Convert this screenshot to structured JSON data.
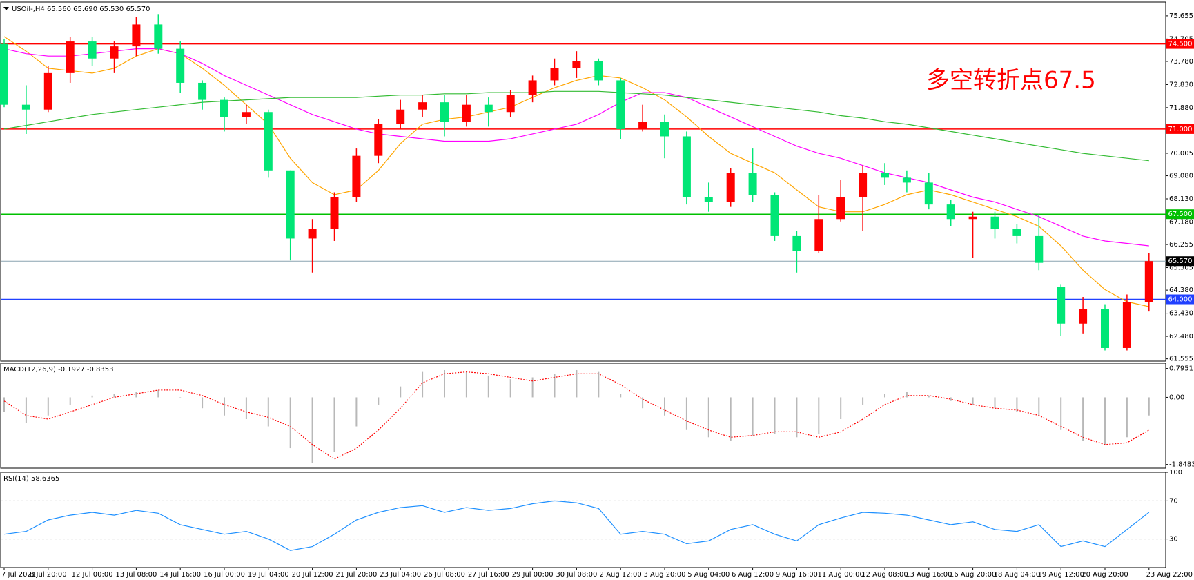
{
  "chart_data": [
    {
      "type": "candlestick",
      "title": "USOil-,H4 65.560 65.690 65.530 65.570",
      "annotation": "多空转折点67.5",
      "categories": [
        "7 Jul 2021",
        null,
        "8 Jul 20:00",
        null,
        "12 Jul 00:00",
        null,
        "13 Jul 08:00",
        null,
        "14 Jul 16:00",
        null,
        "16 Jul 00:00",
        null,
        "19 Jul 04:00",
        null,
        "20 Jul 12:00",
        null,
        "21 Jul 20:00",
        null,
        "23 Jul 04:00",
        null,
        "26 Jul 08:00",
        null,
        "27 Jul 16:00",
        null,
        "29 Jul 00:00",
        null,
        "30 Jul 08:00",
        null,
        "2 Aug 12:00",
        null,
        "3 Aug 20:00",
        null,
        "5 Aug 04:00",
        null,
        "6 Aug 12:00",
        null,
        "9 Aug 16:00",
        null,
        "11 Aug 00:00",
        null,
        "12 Aug 08:00",
        null,
        "13 Aug 16:00",
        null,
        "16 Aug 20:00",
        null,
        "18 Aug 04:00",
        null,
        "19 Aug 12:00",
        null,
        "20 Aug 20:00",
        null,
        "23 Aug 22:00"
      ],
      "open": [
        74.5,
        72.0,
        71.8,
        73.3,
        74.6,
        73.9,
        74.4,
        75.3,
        74.3,
        72.9,
        72.2,
        71.5,
        71.7,
        69.3,
        66.5,
        66.9,
        68.2,
        69.9,
        71.2,
        71.8,
        72.1,
        71.3,
        72.0,
        71.7,
        72.4,
        73.0,
        73.5,
        73.8,
        73.0,
        71.0,
        71.3,
        70.7,
        68.2,
        68.0,
        69.2,
        68.3,
        66.6,
        66.0,
        67.3,
        68.2,
        69.2,
        69.0,
        68.8,
        67.9,
        67.3,
        67.4,
        66.9,
        66.6,
        64.5,
        63.0,
        63.6,
        62.0,
        63.9
      ],
      "high": [
        74.7,
        72.8,
        73.6,
        74.8,
        74.8,
        74.6,
        75.6,
        75.7,
        74.6,
        73.0,
        72.3,
        72.0,
        71.8,
        69.3,
        67.3,
        68.4,
        70.2,
        71.4,
        72.2,
        72.4,
        72.4,
        72.4,
        72.3,
        72.6,
        73.2,
        73.9,
        74.2,
        73.9,
        73.1,
        72.0,
        71.6,
        70.9,
        68.8,
        69.4,
        70.2,
        68.4,
        66.8,
        68.3,
        68.9,
        69.5,
        69.6,
        69.3,
        69.2,
        68.1,
        67.6,
        67.6,
        67.1,
        67.5,
        64.6,
        64.1,
        63.8,
        64.2,
        65.9
      ],
      "low": [
        71.9,
        70.8,
        71.7,
        72.9,
        73.6,
        73.3,
        74.0,
        74.1,
        72.5,
        71.8,
        70.9,
        71.2,
        69.0,
        65.6,
        65.1,
        66.4,
        68.0,
        69.6,
        71.0,
        71.5,
        70.7,
        71.1,
        71.1,
        71.5,
        72.1,
        72.8,
        73.1,
        72.8,
        70.6,
        70.9,
        69.8,
        67.9,
        67.6,
        67.8,
        68.0,
        66.4,
        65.1,
        65.9,
        67.2,
        66.8,
        68.7,
        68.4,
        67.7,
        67.0,
        65.7,
        66.5,
        66.3,
        65.2,
        62.5,
        62.6,
        61.9,
        61.9,
        63.5
      ],
      "close": [
        72.0,
        71.8,
        73.3,
        74.6,
        73.9,
        74.4,
        75.3,
        74.3,
        72.9,
        72.2,
        71.5,
        71.7,
        69.3,
        66.5,
        66.9,
        68.2,
        69.9,
        71.2,
        71.8,
        72.1,
        71.3,
        72.0,
        71.7,
        72.4,
        73.0,
        73.5,
        73.8,
        73.0,
        71.0,
        71.3,
        70.7,
        68.2,
        68.0,
        69.2,
        68.3,
        66.6,
        66.0,
        67.3,
        68.2,
        69.2,
        69.0,
        68.8,
        67.9,
        67.3,
        67.4,
        66.9,
        66.6,
        65.5,
        63.0,
        63.6,
        62.0,
        63.9,
        65.57
      ],
      "up_color": "#ff0000",
      "down_color": "#00e676",
      "lines": [
        {
          "color": "#ffa500",
          "values": [
            74.8,
            74.2,
            73.5,
            73.4,
            73.3,
            73.5,
            74.0,
            74.3,
            74.1,
            73.5,
            72.8,
            72.0,
            71.2,
            69.8,
            68.8,
            68.3,
            68.5,
            69.3,
            70.4,
            71.2,
            71.4,
            71.5,
            71.7,
            71.9,
            72.3,
            72.7,
            73.0,
            73.2,
            73.1,
            72.7,
            72.2,
            71.5,
            70.7,
            70.0,
            69.6,
            69.2,
            68.5,
            67.8,
            67.6,
            67.6,
            67.9,
            68.3,
            68.5,
            68.3,
            68.0,
            67.7,
            67.4,
            67.0,
            66.2,
            65.2,
            64.4,
            63.9,
            63.7
          ]
        },
        {
          "color": "#ff00ff",
          "values": [
            74.3,
            74.1,
            74.0,
            74.0,
            74.1,
            74.2,
            74.3,
            74.3,
            74.1,
            73.7,
            73.2,
            72.8,
            72.4,
            72.0,
            71.6,
            71.3,
            71.0,
            70.8,
            70.7,
            70.6,
            70.5,
            70.5,
            70.5,
            70.6,
            70.8,
            71.0,
            71.2,
            71.6,
            72.1,
            72.5,
            72.5,
            72.3,
            71.9,
            71.5,
            71.1,
            70.7,
            70.3,
            70.0,
            69.8,
            69.5,
            69.2,
            69.0,
            68.8,
            68.5,
            68.2,
            68.0,
            67.7,
            67.4,
            67.0,
            66.6,
            66.4,
            66.3,
            66.2
          ]
        },
        {
          "color": "#33bb33",
          "values": [
            71.0,
            71.15,
            71.3,
            71.45,
            71.6,
            71.7,
            71.8,
            71.9,
            72.0,
            72.1,
            72.15,
            72.2,
            72.25,
            72.3,
            72.3,
            72.3,
            72.3,
            72.35,
            72.4,
            72.4,
            72.45,
            72.45,
            72.5,
            72.5,
            72.5,
            72.55,
            72.55,
            72.55,
            72.5,
            72.45,
            72.4,
            72.3,
            72.2,
            72.1,
            72.0,
            71.9,
            71.8,
            71.7,
            71.55,
            71.45,
            71.3,
            71.2,
            71.05,
            70.9,
            70.75,
            70.6,
            70.45,
            70.3,
            70.15,
            70.0,
            69.9,
            69.8,
            69.7
          ]
        }
      ],
      "levels": [
        {
          "value": 74.5,
          "label": "74.500",
          "color": "#ff0000"
        },
        {
          "value": 71,
          "label": "71.000",
          "color": "#ff0000"
        },
        {
          "value": 67.5,
          "label": "67.500",
          "color": "#00c000"
        },
        {
          "value": 64,
          "label": "64.000",
          "color": "#2040ff"
        }
      ],
      "last_price": {
        "value": 65.57,
        "label": "65.570",
        "color": "#8aa4b0"
      },
      "ylim": [
        61.46,
        76.22
      ],
      "yticks": [
        75.655,
        74.705,
        {
          "value": 73.78,
          "label": "73.780"
        },
        {
          "value": 72.83,
          "label": "72.830"
        },
        {
          "value": 71.88,
          "label": "71.880"
        },
        70.005,
        {
          "value": 69.08,
          "label": "69.080"
        },
        {
          "value": 68.13,
          "label": "68.130"
        },
        {
          "value": 67.18,
          "label": "67.180"
        },
        66.255,
        65.305,
        {
          "value": 64.38,
          "label": "64.380"
        },
        {
          "value": 63.43,
          "label": "63.430"
        },
        {
          "value": 62.48,
          "label": "62.480"
        },
        61.555
      ]
    },
    {
      "type": "macd",
      "title": "MACD(12,26,9) -0.1927 -0.8353",
      "histogram": {
        "color": "#b8b8b8",
        "values": [
          -0.4,
          -0.7,
          -0.5,
          -0.2,
          0.05,
          0.1,
          0.15,
          0.2,
          0.0,
          -0.3,
          -0.5,
          -0.6,
          -0.8,
          -1.4,
          -1.8,
          -1.5,
          -0.8,
          -0.2,
          0.3,
          0.7,
          0.75,
          0.7,
          0.6,
          0.5,
          0.55,
          0.65,
          0.75,
          0.7,
          0.1,
          -0.3,
          -0.5,
          -0.9,
          -1.1,
          -1.2,
          -1.05,
          -1.0,
          -1.1,
          -1.0,
          -0.6,
          -0.2,
          0.1,
          0.15,
          0.05,
          -0.1,
          -0.2,
          -0.3,
          -0.4,
          -0.5,
          -0.9,
          -1.2,
          -1.3,
          -1.1,
          -0.5
        ]
      },
      "signal": {
        "color": "#ff0000",
        "values": [
          -0.1,
          -0.5,
          -0.6,
          -0.4,
          -0.2,
          0.0,
          0.1,
          0.2,
          0.2,
          0.05,
          -0.2,
          -0.4,
          -0.55,
          -0.8,
          -1.3,
          -1.7,
          -1.4,
          -0.9,
          -0.3,
          0.4,
          0.65,
          0.7,
          0.65,
          0.55,
          0.45,
          0.55,
          0.65,
          0.65,
          0.35,
          -0.05,
          -0.35,
          -0.65,
          -0.9,
          -1.1,
          -1.05,
          -0.95,
          -0.95,
          -1.1,
          -0.95,
          -0.6,
          -0.2,
          0.05,
          0.05,
          -0.05,
          -0.2,
          -0.3,
          -0.35,
          -0.5,
          -0.8,
          -1.1,
          -1.3,
          -1.25,
          -0.9
        ]
      },
      "ylim": [
        -1.95,
        0.94
      ],
      "yticks": [
        0.7951,
        {
          "value": 0,
          "label": "0.00"
        },
        -1.8483
      ]
    },
    {
      "type": "line",
      "title": "RSI(14) 58.6365",
      "color": "#1e90ff",
      "values": [
        35,
        38,
        50,
        55,
        58,
        55,
        60,
        57,
        45,
        40,
        35,
        38,
        30,
        18,
        22,
        35,
        50,
        58,
        63,
        65,
        58,
        63,
        60,
        62,
        67,
        70,
        68,
        62,
        35,
        38,
        35,
        25,
        28,
        40,
        45,
        35,
        28,
        45,
        52,
        58,
        57,
        55,
        50,
        45,
        48,
        40,
        38,
        45,
        22,
        28,
        22,
        40,
        58
      ],
      "ylim": [
        0,
        100
      ],
      "yticks": [
        30,
        70,
        100
      ],
      "grid": true
    }
  ]
}
